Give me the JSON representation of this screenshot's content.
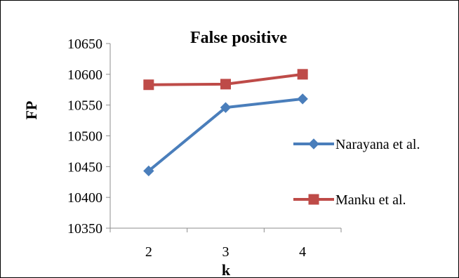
{
  "chart_data": {
    "type": "line",
    "title": "False positive",
    "xlabel": "k",
    "ylabel": "FP",
    "categories": [
      "2",
      "3",
      "4"
    ],
    "ylim": [
      10350,
      10650
    ],
    "yticks": [
      10350,
      10400,
      10450,
      10500,
      10550,
      10600,
      10650
    ],
    "grid": false,
    "legend_position": "right",
    "series": [
      {
        "name": "Narayana et al.",
        "values": [
          10443,
          10546,
          10560
        ],
        "color": "#4a7ebb",
        "marker": "diamond"
      },
      {
        "name": "Manku et al.",
        "values": [
          10583,
          10584,
          10600
        ],
        "color": "#be4b48",
        "marker": "square"
      }
    ]
  }
}
